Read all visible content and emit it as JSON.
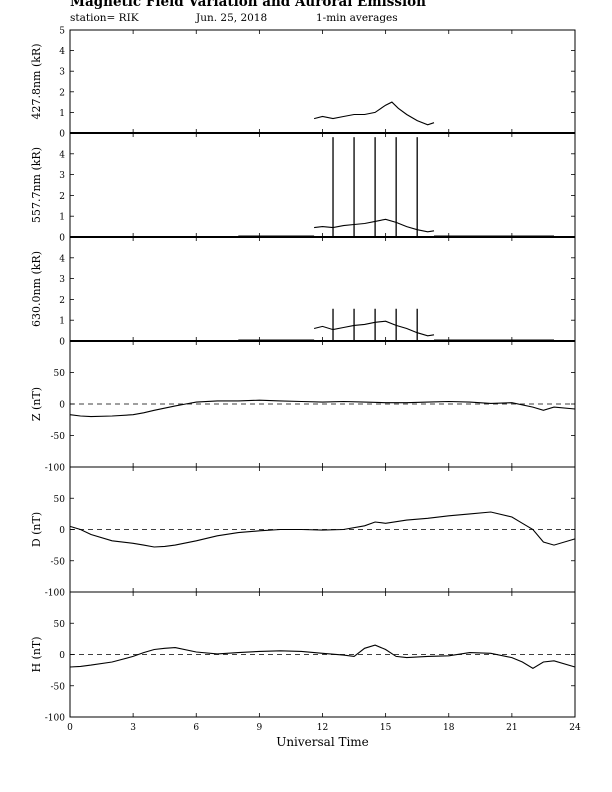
{
  "title": "Magnetic Field Variation and Auroral Emission",
  "subtitle": {
    "station": "station= RIK",
    "date": "Jun. 25, 2018",
    "averaging": "1-min averages"
  },
  "xaxis": {
    "label": "Universal Time",
    "ticks": [
      0,
      3,
      6,
      9,
      12,
      15,
      18,
      21,
      24
    ],
    "range": [
      0,
      24
    ]
  },
  "chart_data": [
    {
      "type": "line",
      "ylabel": "427.8nm (kR)",
      "ylim": [
        0,
        5
      ],
      "yticks": [
        0,
        1,
        2,
        3,
        4,
        5
      ],
      "series": [
        {
          "x": [
            11.6,
            12.0,
            12.5,
            13.0,
            13.5,
            14.0,
            14.5,
            15.0,
            15.3,
            15.6,
            16.0,
            16.5,
            17.0,
            17.3
          ],
          "values": [
            0.7,
            0.8,
            0.7,
            0.8,
            0.9,
            0.9,
            1.0,
            1.35,
            1.5,
            1.2,
            0.9,
            0.6,
            0.4,
            0.5
          ]
        }
      ]
    },
    {
      "type": "line",
      "ylabel": "557.7nm (kR)",
      "ylim": [
        0,
        5
      ],
      "yticks": [
        0,
        1,
        2,
        3,
        4
      ],
      "series": [
        {
          "x": [
            8,
            11.6
          ],
          "values": [
            0.05,
            0.05
          ]
        },
        {
          "x": [
            11.6,
            12.0,
            12.5,
            13.0,
            13.5,
            14.0,
            14.5,
            15.0,
            15.5,
            16.0,
            16.5,
            17.0,
            17.3
          ],
          "values": [
            0.45,
            0.5,
            0.45,
            0.55,
            0.6,
            0.65,
            0.75,
            0.85,
            0.7,
            0.5,
            0.35,
            0.25,
            0.3
          ]
        },
        {
          "x": [
            17.3,
            23
          ],
          "values": [
            0.05,
            0.05
          ]
        }
      ],
      "spikes": {
        "x": [
          12.5,
          13.5,
          14.5,
          15.5,
          16.5
        ],
        "top": 4.8
      }
    },
    {
      "type": "line",
      "ylabel": "630.0nm (kR)",
      "ylim": [
        0,
        5
      ],
      "yticks": [
        0,
        1,
        2,
        3,
        4
      ],
      "series": [
        {
          "x": [
            8,
            11.6
          ],
          "values": [
            0.05,
            0.05
          ]
        },
        {
          "x": [
            11.6,
            12.0,
            12.5,
            13.0,
            13.5,
            14.0,
            14.5,
            15.0,
            15.5,
            16.0,
            16.5,
            17.0,
            17.3
          ],
          "values": [
            0.6,
            0.7,
            0.55,
            0.65,
            0.75,
            0.8,
            0.9,
            0.95,
            0.75,
            0.6,
            0.4,
            0.25,
            0.3
          ]
        },
        {
          "x": [
            17.3,
            23
          ],
          "values": [
            0.05,
            0.05
          ]
        }
      ],
      "spikes": {
        "x": [
          12.5,
          13.5,
          14.5,
          15.5,
          16.5
        ],
        "top": 1.55
      }
    },
    {
      "type": "line",
      "ylabel": "Z (nT)",
      "ylim": [
        -100,
        100
      ],
      "yticks": [
        -100,
        -50,
        0,
        50
      ],
      "zero_line": true,
      "series": [
        {
          "x": [
            0,
            0.5,
            1,
            2,
            3,
            3.5,
            4,
            5,
            5.5,
            6,
            7,
            8,
            9,
            10,
            11,
            12,
            13,
            14,
            15,
            16,
            17,
            18,
            19,
            20,
            21,
            22,
            22.5,
            23,
            24
          ],
          "values": [
            -17,
            -19,
            -20,
            -19,
            -17,
            -14,
            -10,
            -3,
            0,
            3,
            5,
            5,
            6,
            5,
            4,
            3,
            4,
            3,
            2,
            2,
            3,
            4,
            3,
            1,
            2,
            -5,
            -10,
            -5,
            -8
          ]
        }
      ]
    },
    {
      "type": "line",
      "ylabel": "D (nT)",
      "ylim": [
        -100,
        100
      ],
      "yticks": [
        -100,
        -50,
        0,
        50
      ],
      "zero_line": true,
      "series": [
        {
          "x": [
            0,
            0.5,
            1,
            2,
            3,
            3.5,
            4,
            4.5,
            5,
            6,
            7,
            8,
            9,
            10,
            11,
            12,
            13,
            14,
            14.5,
            15,
            16,
            17,
            18,
            19,
            20,
            21,
            21.5,
            22,
            22.5,
            23,
            24
          ],
          "values": [
            5,
            0,
            -8,
            -18,
            -22,
            -25,
            -28,
            -27,
            -25,
            -18,
            -10,
            -5,
            -2,
            0,
            0,
            -1,
            0,
            6,
            12,
            10,
            15,
            18,
            22,
            25,
            28,
            20,
            10,
            0,
            -20,
            -25,
            -15
          ]
        }
      ]
    },
    {
      "type": "line",
      "ylabel": "H (nT)",
      "ylim": [
        -100,
        100
      ],
      "yticks": [
        -100,
        -50,
        0,
        50
      ],
      "zero_line": true,
      "series": [
        {
          "x": [
            0,
            0.5,
            1,
            2,
            3,
            3.5,
            4,
            4.5,
            5,
            6,
            7,
            8,
            9,
            10,
            11,
            12,
            13,
            13.5,
            14,
            14.5,
            15,
            15.5,
            16,
            17,
            18,
            19,
            20,
            21,
            21.5,
            22,
            22.5,
            23,
            24
          ],
          "values": [
            -20,
            -19,
            -17,
            -12,
            -3,
            3,
            8,
            10,
            11,
            4,
            1,
            3,
            5,
            6,
            5,
            2,
            -1,
            -3,
            10,
            15,
            8,
            -3,
            -5,
            -3,
            -2,
            3,
            2,
            -5,
            -12,
            -22,
            -12,
            -10,
            -20
          ]
        }
      ]
    }
  ]
}
